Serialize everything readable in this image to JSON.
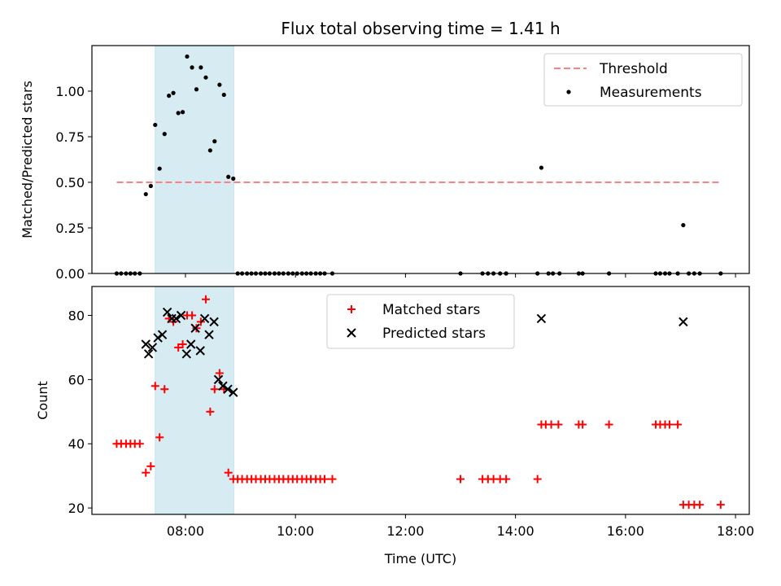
{
  "chart_data": {
    "type": "scatter",
    "title": "Flux total observing time = 1.41 h",
    "xlabel": "Time (UTC)",
    "x_unit": "hours UTC",
    "xlim": [
      6.3,
      18.25
    ],
    "x_ticks": [
      {
        "value": 8,
        "label": "08:00"
      },
      {
        "value": 10,
        "label": "10:00"
      },
      {
        "value": 12,
        "label": "12:00"
      },
      {
        "value": 14,
        "label": "14:00"
      },
      {
        "value": 16,
        "label": "16:00"
      },
      {
        "value": 18,
        "label": "18:00"
      }
    ],
    "shaded_interval": {
      "x": [
        7.45,
        8.88
      ],
      "color": "#add8e6"
    },
    "panels": [
      {
        "ylabel": "Matched/Predicted stars",
        "ylim": [
          0,
          1.25
        ],
        "y_ticks": [
          {
            "value": 0,
            "label": "0.00"
          },
          {
            "value": 0.25,
            "label": "0.25"
          },
          {
            "value": 0.5,
            "label": "0.50"
          },
          {
            "value": 0.75,
            "label": "0.75"
          },
          {
            "value": 1.0,
            "label": "1.00"
          }
        ],
        "legend": {
          "position": "top-right",
          "entries": [
            {
              "label": "Threshold",
              "style": "dashed-line",
              "color": "#ff8080"
            },
            {
              "label": "Measurements",
              "style": "dot",
              "color": "#000000"
            }
          ]
        },
        "series": [
          {
            "name": "Threshold",
            "kind": "line",
            "color": "#ff8080",
            "dashed": true,
            "x": [
              6.75,
              17.73
            ],
            "y": [
              0.5,
              0.5
            ]
          },
          {
            "name": "Measurements",
            "kind": "dot",
            "color": "#000000",
            "points": [
              [
                6.75,
                0
              ],
              [
                6.83,
                0
              ],
              [
                6.92,
                0
              ],
              [
                7.0,
                0
              ],
              [
                7.08,
                0
              ],
              [
                7.17,
                0
              ],
              [
                7.28,
                0.435
              ],
              [
                7.37,
                0.48
              ],
              [
                7.45,
                0.815
              ],
              [
                7.53,
                0.575
              ],
              [
                7.62,
                0.765
              ],
              [
                7.7,
                0.975
              ],
              [
                7.78,
                0.99
              ],
              [
                7.87,
                0.88
              ],
              [
                7.95,
                0.885
              ],
              [
                8.03,
                1.19
              ],
              [
                8.12,
                1.13
              ],
              [
                8.2,
                1.01
              ],
              [
                8.28,
                1.13
              ],
              [
                8.37,
                1.075
              ],
              [
                8.45,
                0.675
              ],
              [
                8.53,
                0.725
              ],
              [
                8.62,
                1.035
              ],
              [
                8.7,
                0.98
              ],
              [
                8.78,
                0.53
              ],
              [
                8.87,
                0.52
              ],
              [
                8.95,
                0
              ],
              [
                9.03,
                0
              ],
              [
                9.12,
                0
              ],
              [
                9.2,
                0
              ],
              [
                9.28,
                0
              ],
              [
                9.37,
                0
              ],
              [
                9.45,
                0
              ],
              [
                9.53,
                0
              ],
              [
                9.62,
                0
              ],
              [
                9.7,
                0
              ],
              [
                9.78,
                0
              ],
              [
                9.87,
                0
              ],
              [
                9.95,
                0
              ],
              [
                10.03,
                0
              ],
              [
                10.12,
                0
              ],
              [
                10.2,
                0
              ],
              [
                10.28,
                0
              ],
              [
                10.37,
                0
              ],
              [
                10.45,
                0
              ],
              [
                10.53,
                0
              ],
              [
                10.67,
                0
              ],
              [
                13.0,
                0
              ],
              [
                13.4,
                0
              ],
              [
                13.5,
                0
              ],
              [
                13.6,
                0
              ],
              [
                13.72,
                0
              ],
              [
                13.83,
                0
              ],
              [
                14.4,
                0
              ],
              [
                14.47,
                0.58
              ],
              [
                14.6,
                0
              ],
              [
                14.68,
                0
              ],
              [
                14.8,
                0
              ],
              [
                15.15,
                0
              ],
              [
                15.22,
                0
              ],
              [
                15.7,
                0
              ],
              [
                16.55,
                0
              ],
              [
                16.63,
                0
              ],
              [
                16.72,
                0
              ],
              [
                16.8,
                0
              ],
              [
                16.95,
                0
              ],
              [
                17.05,
                0.265
              ],
              [
                17.15,
                0
              ],
              [
                17.25,
                0
              ],
              [
                17.35,
                0
              ],
              [
                17.73,
                0
              ]
            ]
          }
        ]
      },
      {
        "ylabel": "Count",
        "ylim": [
          18,
          89
        ],
        "y_ticks": [
          {
            "value": 20,
            "label": "20"
          },
          {
            "value": 40,
            "label": "40"
          },
          {
            "value": 60,
            "label": "60"
          },
          {
            "value": 80,
            "label": "80"
          }
        ],
        "legend": {
          "position": "upper-center",
          "entries": [
            {
              "label": "Matched stars",
              "style": "plus",
              "color": "#ff0000"
            },
            {
              "label": "Predicted stars",
              "style": "x",
              "color": "#000000"
            }
          ]
        },
        "series": [
          {
            "name": "Matched stars",
            "kind": "plus",
            "color": "#ff0000",
            "points": [
              [
                6.75,
                40
              ],
              [
                6.83,
                40
              ],
              [
                6.92,
                40
              ],
              [
                7.0,
                40
              ],
              [
                7.08,
                40
              ],
              [
                7.17,
                40
              ],
              [
                7.28,
                31
              ],
              [
                7.37,
                33
              ],
              [
                7.45,
                58
              ],
              [
                7.53,
                42
              ],
              [
                7.62,
                57
              ],
              [
                7.7,
                79
              ],
              [
                7.78,
                78
              ],
              [
                7.87,
                70
              ],
              [
                7.95,
                71
              ],
              [
                8.03,
                80
              ],
              [
                8.12,
                80
              ],
              [
                8.2,
                76
              ],
              [
                8.28,
                78
              ],
              [
                8.37,
                85
              ],
              [
                8.45,
                50
              ],
              [
                8.53,
                57
              ],
              [
                8.62,
                62
              ],
              [
                8.7,
                57
              ],
              [
                8.78,
                31
              ],
              [
                8.87,
                29
              ],
              [
                8.95,
                29
              ],
              [
                9.03,
                29
              ],
              [
                9.12,
                29
              ],
              [
                9.2,
                29
              ],
              [
                9.28,
                29
              ],
              [
                9.37,
                29
              ],
              [
                9.45,
                29
              ],
              [
                9.53,
                29
              ],
              [
                9.62,
                29
              ],
              [
                9.7,
                29
              ],
              [
                9.78,
                29
              ],
              [
                9.87,
                29
              ],
              [
                9.95,
                29
              ],
              [
                10.03,
                29
              ],
              [
                10.12,
                29
              ],
              [
                10.2,
                29
              ],
              [
                10.28,
                29
              ],
              [
                10.37,
                29
              ],
              [
                10.45,
                29
              ],
              [
                10.53,
                29
              ],
              [
                10.67,
                29
              ],
              [
                13.0,
                29
              ],
              [
                13.4,
                29
              ],
              [
                13.5,
                29
              ],
              [
                13.6,
                29
              ],
              [
                13.72,
                29
              ],
              [
                13.83,
                29
              ],
              [
                14.4,
                29
              ],
              [
                14.47,
                46
              ],
              [
                14.55,
                46
              ],
              [
                14.65,
                46
              ],
              [
                14.78,
                46
              ],
              [
                15.15,
                46
              ],
              [
                15.22,
                46
              ],
              [
                15.7,
                46
              ],
              [
                16.55,
                46
              ],
              [
                16.63,
                46
              ],
              [
                16.72,
                46
              ],
              [
                16.8,
                46
              ],
              [
                16.95,
                46
              ],
              [
                17.05,
                21
              ],
              [
                17.15,
                21
              ],
              [
                17.25,
                21
              ],
              [
                17.35,
                21
              ],
              [
                17.73,
                21
              ]
            ]
          },
          {
            "name": "Predicted stars",
            "kind": "x",
            "color": "#000000",
            "points": [
              [
                7.28,
                71
              ],
              [
                7.33,
                68
              ],
              [
                7.4,
                70
              ],
              [
                7.5,
                73
              ],
              [
                7.58,
                74
              ],
              [
                7.67,
                81
              ],
              [
                7.75,
                79
              ],
              [
                7.83,
                79
              ],
              [
                7.92,
                80
              ],
              [
                8.02,
                68
              ],
              [
                8.1,
                71
              ],
              [
                8.18,
                76
              ],
              [
                8.27,
                69
              ],
              [
                8.35,
                79
              ],
              [
                8.43,
                74
              ],
              [
                8.52,
                78
              ],
              [
                8.6,
                60
              ],
              [
                8.68,
                58
              ],
              [
                8.77,
                57
              ],
              [
                8.87,
                56
              ],
              [
                14.47,
                79
              ],
              [
                17.05,
                78
              ]
            ]
          }
        ]
      }
    ]
  }
}
